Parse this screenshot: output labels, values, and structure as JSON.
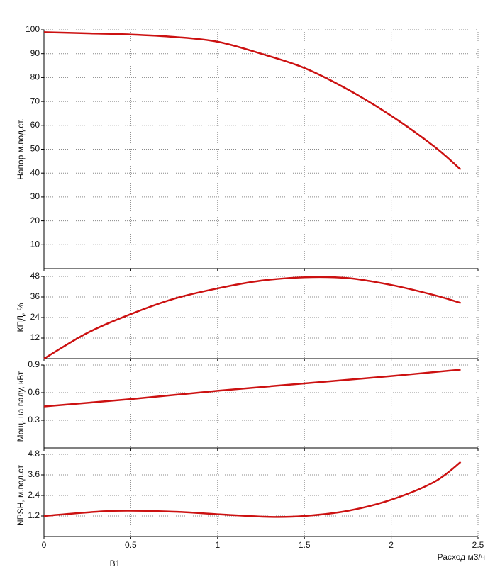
{
  "chart_data": [
    {
      "type": "line",
      "y_label": "Напор м.вод.ст.",
      "color": "#cc1111",
      "x": [
        0,
        0.25,
        0.5,
        0.75,
        1,
        1.25,
        1.5,
        1.75,
        2,
        2.25,
        2.4
      ],
      "values": [
        99,
        98.5,
        98,
        97,
        95,
        90,
        84,
        75,
        64,
        51,
        41.5
      ],
      "xlim": [
        0,
        2.5
      ],
      "xticks": [
        0,
        0.5,
        1,
        1.5,
        2,
        2.5
      ],
      "ylim": [
        0,
        100
      ],
      "yticks": [
        10,
        20,
        30,
        40,
        50,
        60,
        70,
        80,
        90,
        100
      ],
      "grid": true
    },
    {
      "type": "line",
      "y_label": "КПД, %",
      "color": "#cc1111",
      "x": [
        0,
        0.25,
        0.5,
        0.75,
        1,
        1.25,
        1.5,
        1.75,
        2,
        2.25,
        2.4
      ],
      "values": [
        0,
        15,
        26,
        35,
        41,
        45.5,
        47.5,
        47,
        43,
        37,
        32.5
      ],
      "xlim": [
        0,
        2.5
      ],
      "xticks": [
        0,
        0.5,
        1,
        1.5,
        2,
        2.5
      ],
      "ylim": [
        0,
        48
      ],
      "yticks": [
        12,
        24,
        36,
        48
      ],
      "grid": true
    },
    {
      "type": "line",
      "y_label": "Мощ. на валу, кВт",
      "color": "#cc1111",
      "x": [
        0,
        0.5,
        1,
        1.5,
        2,
        2.4
      ],
      "values": [
        0.45,
        0.53,
        0.62,
        0.7,
        0.78,
        0.85
      ],
      "xlim": [
        0,
        2.5
      ],
      "xticks": [
        0,
        0.5,
        1,
        1.5,
        2,
        2.5
      ],
      "ylim": [
        0,
        0.9
      ],
      "yticks": [
        0.3,
        0.6,
        0.9
      ],
      "grid": true
    },
    {
      "type": "line",
      "y_label": "NPSH, м.вод.ст",
      "color": "#cc1111",
      "x": [
        0,
        0.4,
        0.75,
        1,
        1.3,
        1.5,
        1.75,
        2,
        2.25,
        2.4
      ],
      "values": [
        1.2,
        1.5,
        1.45,
        1.3,
        1.15,
        1.2,
        1.5,
        2.15,
        3.2,
        4.35
      ],
      "xlim": [
        0,
        2.5
      ],
      "xticks": [
        0,
        0.5,
        1,
        1.5,
        2,
        2.5
      ],
      "ylim": [
        0,
        4.8
      ],
      "yticks": [
        1.2,
        2.4,
        3.6,
        4.8
      ],
      "grid": true,
      "x_label": "Расход м3/ч",
      "annotation": "В1"
    }
  ]
}
